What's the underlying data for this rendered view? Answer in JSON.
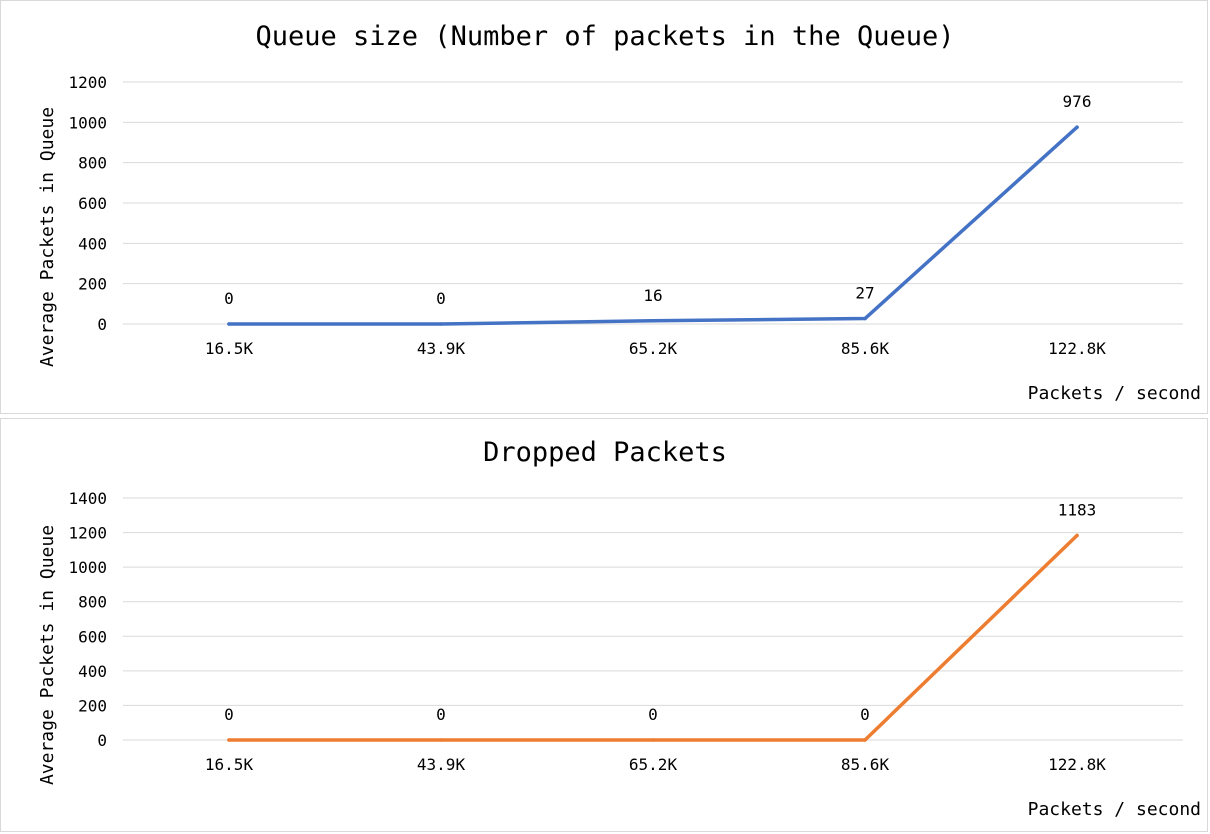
{
  "chart_data": [
    {
      "type": "line",
      "title": "Queue size (Number of packets in the Queue)",
      "xlabel": "Packets / second",
      "ylabel": "Average Packets in Queue",
      "categories": [
        "16.5K",
        "43.9K",
        "65.2K",
        "85.6K",
        "122.8K"
      ],
      "series": [
        {
          "values": [
            0,
            0,
            16,
            27,
            976
          ],
          "color": "#4472c4"
        }
      ],
      "data_labels": [
        "0",
        "0",
        "16",
        "27",
        "976"
      ],
      "yticks": [
        "0",
        "200",
        "400",
        "600",
        "800",
        "1000",
        "1200"
      ],
      "ylim": [
        0,
        1200
      ],
      "grid": true,
      "legend": "none"
    },
    {
      "type": "line",
      "title": "Dropped Packets",
      "xlabel": "Packets / second",
      "ylabel": "Average Packets in Queue",
      "categories": [
        "16.5K",
        "43.9K",
        "65.2K",
        "85.6K",
        "122.8K"
      ],
      "series": [
        {
          "values": [
            0,
            0,
            0,
            0,
            1183
          ],
          "color": "#ed7d31"
        }
      ],
      "data_labels": [
        "0",
        "0",
        "0",
        "0",
        "1183"
      ],
      "yticks": [
        "0",
        "200",
        "400",
        "600",
        "800",
        "1000",
        "1200",
        "1400"
      ],
      "ylim": [
        0,
        1400
      ],
      "grid": true,
      "legend": "none"
    }
  ]
}
